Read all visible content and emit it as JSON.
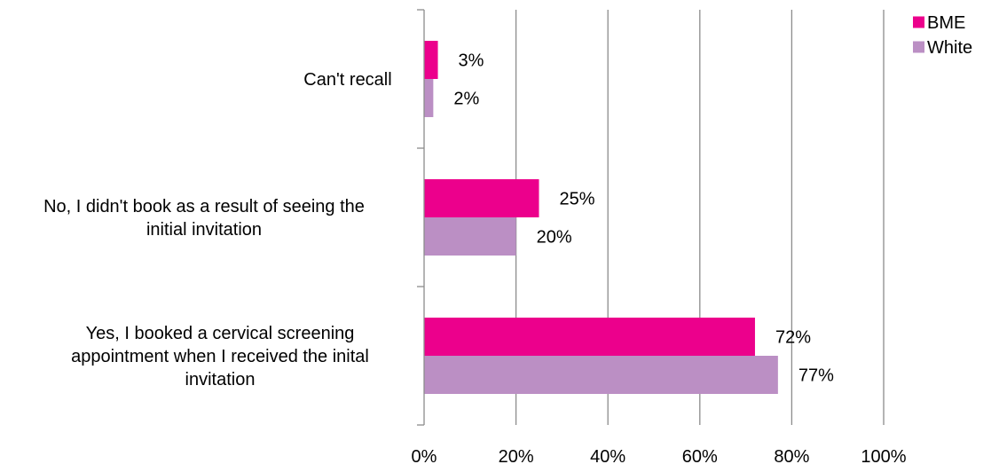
{
  "chart_data": {
    "type": "bar",
    "orientation": "horizontal",
    "categories": [
      "Can't recall",
      "No, I didn't book as a result of seeing the initial invitation",
      "Yes, I booked a cervical screening appointment when I received the inital invitation"
    ],
    "series": [
      {
        "name": "BME",
        "color": "#ec008c",
        "values": [
          3,
          25,
          72
        ]
      },
      {
        "name": "White",
        "color": "#bb8fc4",
        "values": [
          2,
          20,
          77
        ]
      }
    ],
    "value_unit": "%",
    "xlim": [
      0,
      100
    ],
    "x_ticks": [
      0,
      20,
      40,
      60,
      80,
      100
    ],
    "x_tick_labels": [
      "0%",
      "20%",
      "40%",
      "60%",
      "80%",
      "100%"
    ],
    "grid": "vertical",
    "legend_position": "top-right",
    "title": "",
    "xlabel": "",
    "ylabel": ""
  }
}
